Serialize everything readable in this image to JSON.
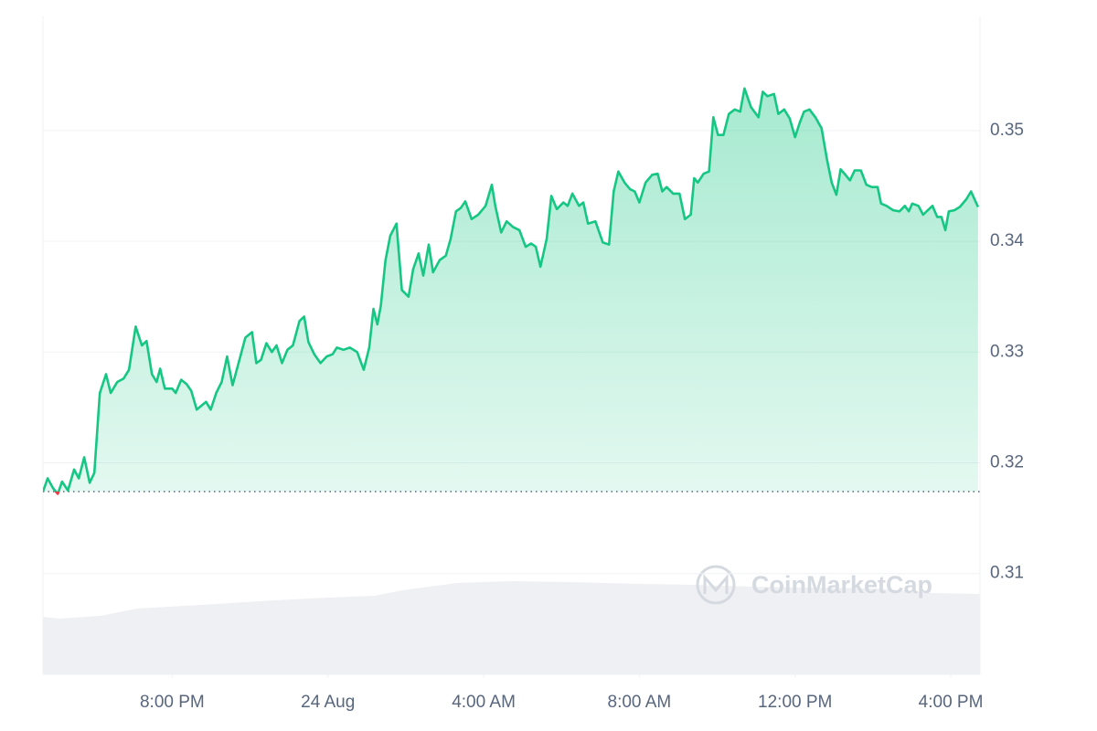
{
  "chart_data": {
    "type": "line",
    "watermark": "CoinMarketCap",
    "color": "#16c784",
    "down_color": "#ea3943",
    "baseline": 0.3174,
    "grid": true,
    "xlim": [
      16.68,
      40.75
    ],
    "ylim": [
      0.3009,
      0.3603
    ],
    "xticks": [
      {
        "value": 20,
        "label": "8:00 PM"
      },
      {
        "value": 24,
        "label": "24 Aug"
      },
      {
        "value": 28,
        "label": "4:00 AM"
      },
      {
        "value": 32,
        "label": "8:00 AM"
      },
      {
        "value": 36,
        "label": "12:00 PM"
      },
      {
        "value": 40,
        "label": "4:00 PM"
      }
    ],
    "yticks": [
      0.31,
      0.32,
      0.33,
      0.34,
      0.35
    ],
    "x": [
      16.68,
      16.8,
      16.94,
      17.06,
      17.17,
      17.32,
      17.48,
      17.6,
      17.74,
      17.88,
      18.0,
      18.14,
      18.3,
      18.42,
      18.59,
      18.75,
      18.89,
      19.06,
      19.22,
      19.34,
      19.48,
      19.6,
      19.69,
      19.81,
      20.0,
      20.09,
      20.23,
      20.37,
      20.49,
      20.63,
      20.87,
      20.99,
      21.13,
      21.27,
      21.41,
      21.55,
      21.69,
      21.88,
      22.05,
      22.16,
      22.28,
      22.42,
      22.56,
      22.68,
      22.82,
      22.96,
      23.1,
      23.27,
      23.39,
      23.5,
      23.65,
      23.81,
      23.97,
      24.12,
      24.23,
      24.4,
      24.56,
      24.75,
      24.92,
      25.06,
      25.17,
      25.27,
      25.36,
      25.48,
      25.6,
      25.76,
      25.9,
      26.07,
      26.19,
      26.33,
      26.45,
      26.59,
      26.7,
      26.87,
      27.03,
      27.15,
      27.29,
      27.41,
      27.53,
      27.69,
      27.86,
      28.05,
      28.21,
      28.3,
      28.45,
      28.59,
      28.75,
      28.92,
      29.08,
      29.22,
      29.34,
      29.46,
      29.62,
      29.74,
      29.88,
      30.05,
      30.16,
      30.28,
      30.45,
      30.56,
      30.68,
      30.87,
      31.06,
      31.22,
      31.34,
      31.46,
      31.62,
      31.76,
      31.88,
      32.0,
      32.16,
      32.33,
      32.47,
      32.59,
      32.7,
      32.87,
      33.03,
      33.17,
      33.32,
      33.41,
      33.5,
      33.65,
      33.79,
      33.9,
      34.02,
      34.16,
      34.3,
      34.45,
      34.59,
      34.7,
      34.87,
      35.06,
      35.17,
      35.29,
      35.46,
      35.57,
      35.72,
      35.86,
      36.0,
      36.12,
      36.23,
      36.37,
      36.52,
      36.68,
      36.82,
      36.94,
      37.06,
      37.17,
      37.27,
      37.41,
      37.53,
      37.69,
      37.83,
      37.97,
      38.12,
      38.21,
      38.35,
      38.52,
      38.68,
      38.82,
      38.92,
      39.01,
      39.17,
      39.29,
      39.41,
      39.53,
      39.65,
      39.76,
      39.86,
      39.95,
      40.09,
      40.23,
      40.4,
      40.52,
      40.61,
      40.7
    ],
    "values": [
      0.3174,
      0.3186,
      0.3177,
      0.3172,
      0.3183,
      0.3175,
      0.3194,
      0.3186,
      0.3205,
      0.3182,
      0.3191,
      0.3263,
      0.328,
      0.3263,
      0.3273,
      0.3276,
      0.3284,
      0.3323,
      0.3306,
      0.331,
      0.328,
      0.3273,
      0.3285,
      0.3267,
      0.3267,
      0.3263,
      0.3275,
      0.3271,
      0.3265,
      0.3248,
      0.3255,
      0.3248,
      0.3263,
      0.3273,
      0.3296,
      0.327,
      0.3288,
      0.3313,
      0.3318,
      0.329,
      0.3293,
      0.3308,
      0.33,
      0.3306,
      0.329,
      0.3302,
      0.3306,
      0.3328,
      0.3332,
      0.3309,
      0.3298,
      0.329,
      0.3296,
      0.3298,
      0.3304,
      0.3302,
      0.3304,
      0.33,
      0.3284,
      0.3304,
      0.3339,
      0.3325,
      0.3342,
      0.3383,
      0.3405,
      0.3416,
      0.3356,
      0.335,
      0.3375,
      0.3389,
      0.3369,
      0.3397,
      0.3372,
      0.3383,
      0.3387,
      0.3402,
      0.3427,
      0.343,
      0.3436,
      0.342,
      0.3424,
      0.3432,
      0.3451,
      0.3432,
      0.3408,
      0.3418,
      0.3413,
      0.341,
      0.3395,
      0.3398,
      0.3395,
      0.3377,
      0.3402,
      0.3441,
      0.3429,
      0.3435,
      0.3432,
      0.3443,
      0.3432,
      0.3435,
      0.3416,
      0.3418,
      0.3399,
      0.3397,
      0.3445,
      0.3463,
      0.3453,
      0.3447,
      0.3445,
      0.3435,
      0.3453,
      0.346,
      0.3461,
      0.3445,
      0.3449,
      0.3443,
      0.3443,
      0.342,
      0.3424,
      0.3457,
      0.3453,
      0.3461,
      0.3463,
      0.3512,
      0.3496,
      0.3496,
      0.3515,
      0.3519,
      0.3517,
      0.3538,
      0.3521,
      0.3512,
      0.3535,
      0.3531,
      0.3533,
      0.3515,
      0.3519,
      0.3511,
      0.3494,
      0.3507,
      0.3517,
      0.3519,
      0.3512,
      0.3502,
      0.3474,
      0.3453,
      0.3442,
      0.3465,
      0.3461,
      0.3455,
      0.3464,
      0.3464,
      0.3451,
      0.3449,
      0.3449,
      0.3434,
      0.3432,
      0.3428,
      0.3427,
      0.3432,
      0.3427,
      0.3434,
      0.3432,
      0.3424,
      0.3428,
      0.3432,
      0.3422,
      0.3422,
      0.341,
      0.3427,
      0.3428,
      0.3431,
      0.3438,
      0.3445,
      0.3438,
      0.3431
    ]
  }
}
